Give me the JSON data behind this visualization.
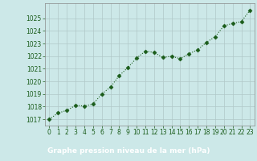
{
  "x": [
    0,
    1,
    2,
    3,
    4,
    5,
    6,
    7,
    8,
    9,
    10,
    11,
    12,
    13,
    14,
    15,
    16,
    17,
    18,
    19,
    20,
    21,
    22,
    23
  ],
  "y": [
    1017.0,
    1017.5,
    1017.7,
    1018.1,
    1018.05,
    1018.2,
    1019.0,
    1019.55,
    1020.45,
    1021.1,
    1021.85,
    1022.4,
    1022.3,
    1021.9,
    1022.0,
    1021.8,
    1022.2,
    1022.5,
    1023.1,
    1023.55,
    1024.4,
    1024.6,
    1024.75,
    1025.65
  ],
  "line_color": "#1a5c1a",
  "marker": "D",
  "marker_size": 2.5,
  "bg_color": "#cce8e8",
  "plot_bg_color": "#cce8e8",
  "bottom_bar_color": "#2d6a2d",
  "grid_color": "#b0c8c8",
  "xlabel": "Graphe pression niveau de la mer (hPa)",
  "xlabel_fontsize": 6.5,
  "xlabel_color": "#ffffff",
  "tick_color": "#1a5c1a",
  "tick_fontsize": 5.5,
  "ylim": [
    1016.5,
    1026.2
  ],
  "xlim": [
    -0.5,
    23.5
  ],
  "yticks": [
    1017,
    1018,
    1019,
    1020,
    1021,
    1022,
    1023,
    1024,
    1025
  ],
  "xticks": [
    0,
    1,
    2,
    3,
    4,
    5,
    6,
    7,
    8,
    9,
    10,
    11,
    12,
    13,
    14,
    15,
    16,
    17,
    18,
    19,
    20,
    21,
    22,
    23
  ]
}
